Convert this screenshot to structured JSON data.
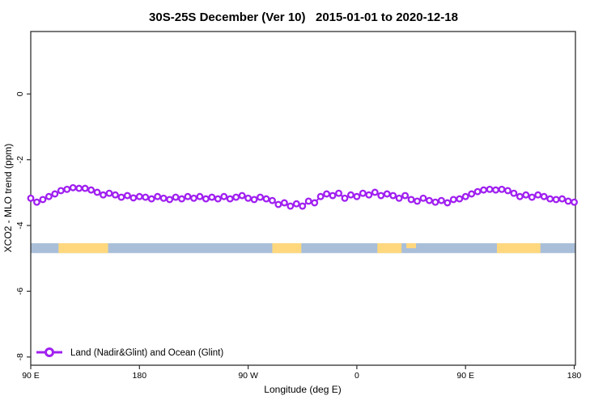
{
  "page": {
    "background": "#ffffff",
    "box_color": "#2f2f2f"
  },
  "chart_data": {
    "type": "line",
    "title": "30S-25S December (Ver 10)   2015-01-01 to 2020-12-18",
    "xlabel": "Longitude (deg E)",
    "ylabel": "XCO2 - MLO trend (ppm)",
    "xlim": [
      90,
      541
    ],
    "ylim": [
      -8.25,
      1.9
    ],
    "grid": false,
    "legend_position": "bottom-left-inside",
    "xticks": [
      {
        "value": 90,
        "label": "90 E"
      },
      {
        "value": 180,
        "label": "180"
      },
      {
        "value": 270,
        "label": "90 W"
      },
      {
        "value": 360,
        "label": "0"
      },
      {
        "value": 450,
        "label": "90 E"
      },
      {
        "value": 540,
        "label": "180"
      }
    ],
    "yticks": [
      {
        "value": 0,
        "label": "0"
      },
      {
        "value": -2,
        "label": "-2"
      },
      {
        "value": -4,
        "label": "-4"
      },
      {
        "value": -6,
        "label": "-6"
      },
      {
        "value": -8,
        "label": "-8"
      }
    ],
    "series": [
      {
        "name": "Land (Nadir&Glint) and Ocean (Glint)",
        "color": "#A020F0",
        "marker": "open-circle",
        "x": [
          90,
          95,
          100,
          105,
          110,
          115,
          120,
          125,
          130,
          135,
          140,
          145,
          150,
          155,
          160,
          165,
          170,
          175,
          180,
          185,
          190,
          195,
          200,
          205,
          210,
          215,
          220,
          225,
          230,
          235,
          240,
          245,
          250,
          255,
          260,
          265,
          270,
          275,
          280,
          285,
          290,
          295,
          300,
          305,
          310,
          315,
          320,
          325,
          330,
          335,
          340,
          345,
          350,
          355,
          360,
          365,
          370,
          375,
          380,
          385,
          390,
          395,
          400,
          405,
          410,
          415,
          420,
          425,
          430,
          435,
          440,
          445,
          450,
          455,
          460,
          465,
          470,
          475,
          480,
          485,
          490,
          495,
          500,
          505,
          510,
          515,
          520,
          525,
          530,
          535,
          540
        ],
        "values": [
          -3.17,
          -3.29,
          -3.21,
          -3.12,
          -3.04,
          -2.94,
          -2.9,
          -2.85,
          -2.87,
          -2.87,
          -2.92,
          -2.99,
          -3.07,
          -3.02,
          -3.07,
          -3.14,
          -3.09,
          -3.16,
          -3.12,
          -3.14,
          -3.19,
          -3.12,
          -3.17,
          -3.21,
          -3.14,
          -3.19,
          -3.12,
          -3.17,
          -3.12,
          -3.19,
          -3.14,
          -3.19,
          -3.12,
          -3.19,
          -3.14,
          -3.09,
          -3.17,
          -3.21,
          -3.14,
          -3.19,
          -3.24,
          -3.36,
          -3.31,
          -3.41,
          -3.34,
          -3.41,
          -3.26,
          -3.31,
          -3.12,
          -3.04,
          -3.09,
          -3.02,
          -3.17,
          -3.07,
          -3.12,
          -3.02,
          -3.07,
          -2.99,
          -3.09,
          -3.04,
          -3.09,
          -3.17,
          -3.09,
          -3.21,
          -3.26,
          -3.17,
          -3.24,
          -3.29,
          -3.24,
          -3.31,
          -3.21,
          -3.19,
          -3.12,
          -3.04,
          -2.97,
          -2.92,
          -2.9,
          -2.92,
          -2.9,
          -2.94,
          -3.02,
          -3.12,
          -3.07,
          -3.14,
          -3.07,
          -3.12,
          -3.19,
          -3.21,
          -3.19,
          -3.26,
          -3.29
        ]
      }
    ],
    "surface_band": {
      "description": "land/ocean indicator strip",
      "value_top": -4.54,
      "value_bottom": -4.84,
      "ocean_color": "#A9BFD9",
      "land_color": "#FFD87E",
      "ocean_range": [
        90,
        541
      ],
      "land_segments": [
        [
          113,
          154
        ],
        [
          290,
          314
        ],
        [
          377,
          397
        ],
        [
          476,
          512
        ]
      ],
      "minor_land_segments_top_half": [
        [
          401,
          409
        ]
      ]
    }
  },
  "legend": {
    "label": "Land (Nadir&Glint) and Ocean (Glint)"
  }
}
